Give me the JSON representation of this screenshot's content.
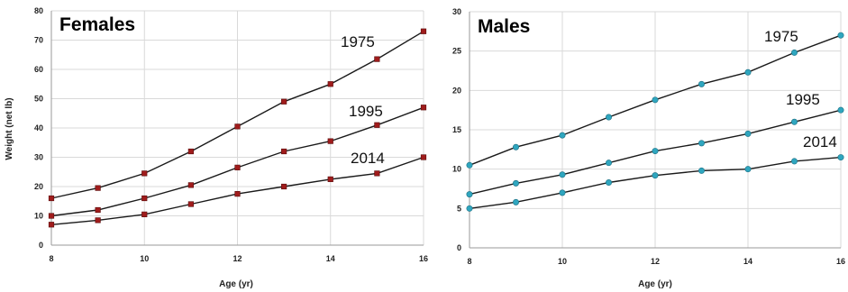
{
  "chart_data": [
    {
      "type": "line",
      "title": "Females",
      "xlabel": "Age (yr)",
      "ylabel": "Weight (net lb)",
      "xlim": [
        8,
        16
      ],
      "ylim": [
        0,
        80
      ],
      "x_ticks": [
        "8",
        "10",
        "12",
        "14",
        "16"
      ],
      "y_ticks": [
        "0",
        "10",
        "20",
        "30",
        "40",
        "50",
        "60",
        "70",
        "80"
      ],
      "grid": true,
      "marker_color": "#a01c1c",
      "x": [
        8,
        9,
        10,
        11,
        12,
        13,
        14,
        15,
        16
      ],
      "series": [
        {
          "name": "1975",
          "values": [
            16,
            19.5,
            24.5,
            32,
            40.5,
            49,
            55,
            63.5,
            73
          ]
        },
        {
          "name": "1995",
          "values": [
            10,
            12,
            16,
            20.5,
            26.5,
            32,
            35.5,
            41,
            47
          ]
        },
        {
          "name": "2014",
          "values": [
            7,
            8.5,
            10.5,
            14,
            17.5,
            20,
            22.5,
            24.5,
            30
          ]
        }
      ]
    },
    {
      "type": "line",
      "title": "Males",
      "xlabel": "Age (yr)",
      "ylabel": "",
      "xlim": [
        8,
        16
      ],
      "ylim": [
        0,
        30
      ],
      "x_ticks": [
        "8",
        "10",
        "12",
        "14",
        "16"
      ],
      "y_ticks": [
        "0",
        "5",
        "10",
        "15",
        "20",
        "25",
        "30"
      ],
      "grid": true,
      "marker_color": "#2fa6bf",
      "x": [
        8,
        9,
        10,
        11,
        12,
        13,
        14,
        15,
        16
      ],
      "series": [
        {
          "name": "1975",
          "values": [
            10.5,
            12.8,
            14.3,
            16.6,
            18.8,
            20.8,
            22.3,
            24.8,
            27
          ]
        },
        {
          "name": "1995",
          "values": [
            6.8,
            8.2,
            9.3,
            10.8,
            12.3,
            13.3,
            14.5,
            16,
            17.5
          ]
        },
        {
          "name": "2014",
          "values": [
            5,
            5.8,
            7,
            8.3,
            9.2,
            9.8,
            10,
            11,
            11.5
          ]
        }
      ]
    }
  ]
}
